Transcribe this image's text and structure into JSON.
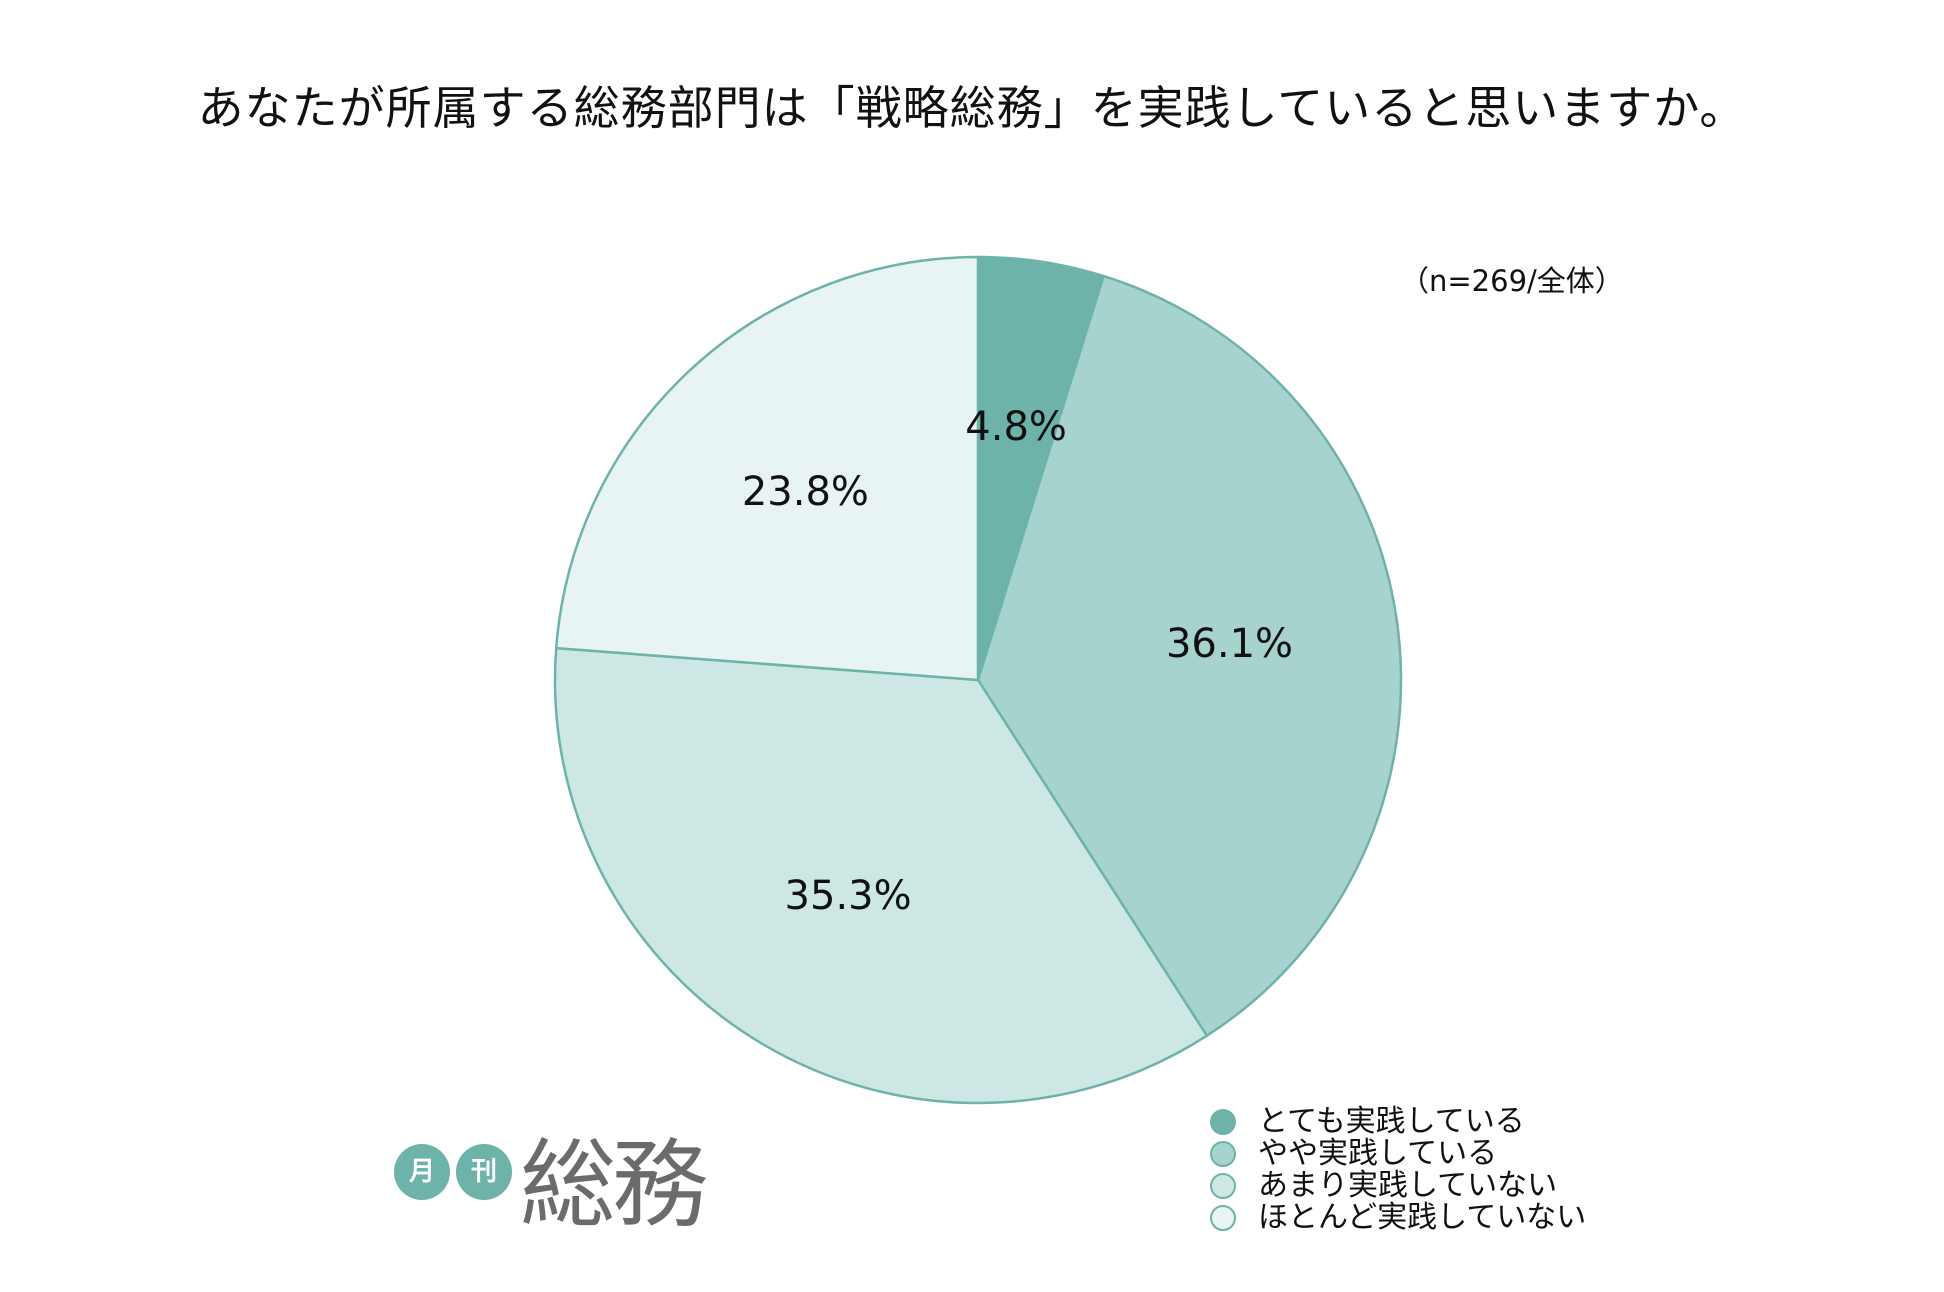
{
  "title": "あなたが所属する総務部門は「戦略総務」を実践していると思いますか。",
  "sample_note": "（n=269/全体）",
  "logo": {
    "circle1": "月",
    "circle2": "刊",
    "word": "総務"
  },
  "colors": {
    "outline": "#6db3aa",
    "slice1": "#6db3aa",
    "slice2": "#a6d3cd",
    "slice3": "#cde8e4",
    "slice4": "#e7f4f3"
  },
  "chart_data": {
    "type": "pie",
    "title": "あなたが所属する総務部門は「戦略総務」を実践していると思いますか。",
    "start_angle_deg": 0,
    "direction": "clockwise",
    "legend_position": "bottom-right",
    "slices": [
      {
        "name": "とても実践している",
        "value": 4.8,
        "label": "4.8%",
        "color": "#6db3aa"
      },
      {
        "name": "やや実践している",
        "value": 36.1,
        "label": "36.1%",
        "color": "#a6d3cd"
      },
      {
        "name": "あまり実践していない",
        "value": 35.3,
        "label": "35.3%",
        "color": "#cde8e4"
      },
      {
        "name": "ほとんど実践していない",
        "value": 23.8,
        "label": "23.8%",
        "color": "#e7f4f3"
      }
    ]
  }
}
